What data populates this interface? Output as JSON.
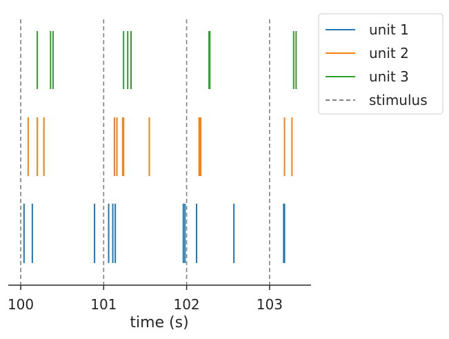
{
  "chart_data": {
    "type": "raster",
    "xlabel": "time (s)",
    "xlim": [
      99.85,
      103.5
    ],
    "xticks": [
      100,
      101,
      102,
      103
    ],
    "xtick_labels": [
      "100",
      "101",
      "102",
      "103"
    ],
    "stimulus": {
      "name": "stimulus",
      "times": [
        100,
        101,
        102,
        103
      ],
      "color": "#808080",
      "style": "dashed"
    },
    "series": [
      {
        "name": "unit 1",
        "color": "#1f77b4",
        "spike_times": [
          100.04,
          100.14,
          100.89,
          101.06,
          101.11,
          101.14,
          101.96,
          101.98,
          102.12,
          102.57,
          103.17,
          103.18
        ]
      },
      {
        "name": "unit 2",
        "color": "#ff7f0e",
        "spike_times": [
          100.09,
          100.2,
          100.28,
          101.13,
          101.16,
          101.23,
          101.24,
          101.55,
          102.15,
          102.16,
          102.17,
          103.18,
          103.27
        ]
      },
      {
        "name": "unit 3",
        "color": "#2ca02c",
        "spike_times": [
          100.2,
          100.36,
          100.39,
          101.24,
          101.29,
          101.33,
          102.27,
          102.28,
          103.29,
          103.32
        ]
      }
    ],
    "legend_position": "outside-top-right"
  }
}
